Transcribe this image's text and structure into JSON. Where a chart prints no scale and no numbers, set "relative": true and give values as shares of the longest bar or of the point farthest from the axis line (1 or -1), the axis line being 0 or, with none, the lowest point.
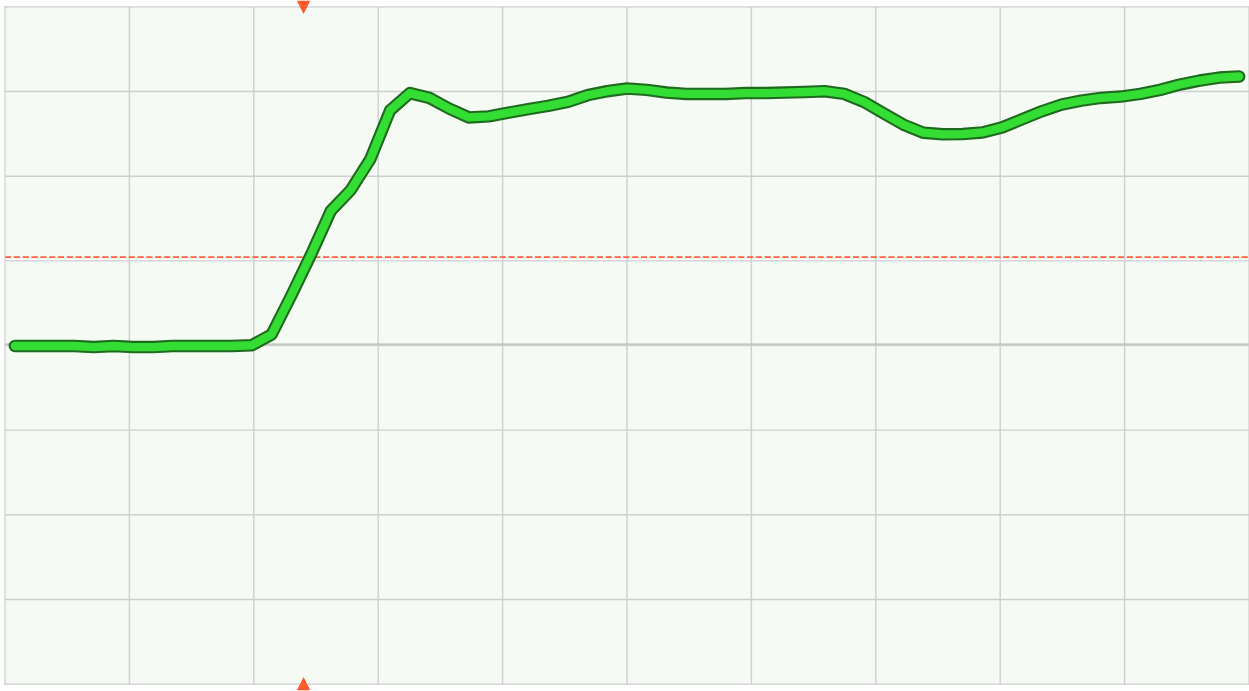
{
  "chart_data": {
    "type": "line",
    "relative": true,
    "grid": true,
    "line_style": "solid",
    "categories": [
      null,
      null,
      null,
      null,
      null,
      null,
      null,
      null,
      null,
      null,
      null,
      null,
      null,
      null,
      null,
      null,
      null,
      null,
      null,
      null,
      null,
      null,
      null,
      null,
      null,
      null,
      null,
      null,
      null,
      null,
      null,
      null,
      null,
      null,
      null,
      null,
      null,
      null,
      null,
      null,
      null,
      null,
      null,
      null,
      null,
      null,
      null,
      null,
      null,
      null,
      null,
      null,
      null,
      null,
      null,
      null,
      null,
      null,
      null,
      null,
      null,
      null,
      null
    ],
    "series": [
      {
        "color": "#33dd33",
        "values": [
          -0.007,
          -0.007,
          -0.007,
          -0.007,
          -0.011,
          -0.007,
          -0.011,
          -0.011,
          -0.007,
          -0.007,
          -0.007,
          -0.007,
          -0.004,
          0.036,
          0.182,
          0.335,
          0.498,
          0.575,
          0.691,
          0.873,
          0.938,
          0.92,
          0.88,
          0.847,
          0.851,
          0.865,
          0.878,
          0.89,
          0.905,
          0.93,
          0.945,
          0.955,
          0.95,
          0.94,
          0.935,
          0.935,
          0.935,
          0.938,
          0.938,
          0.94,
          0.942,
          0.945,
          0.935,
          0.905,
          0.862,
          0.82,
          0.79,
          0.784,
          0.785,
          0.791,
          0.81,
          0.84,
          0.87,
          0.895,
          0.91,
          0.92,
          0.925,
          0.935,
          0.95,
          0.97,
          0.985,
          0.996,
          1.0
        ]
      }
    ],
    "ref_lines": [
      {
        "axis": "y",
        "value": 0.325,
        "color": "#ff6040",
        "line_style": "dashed"
      }
    ]
  }
}
